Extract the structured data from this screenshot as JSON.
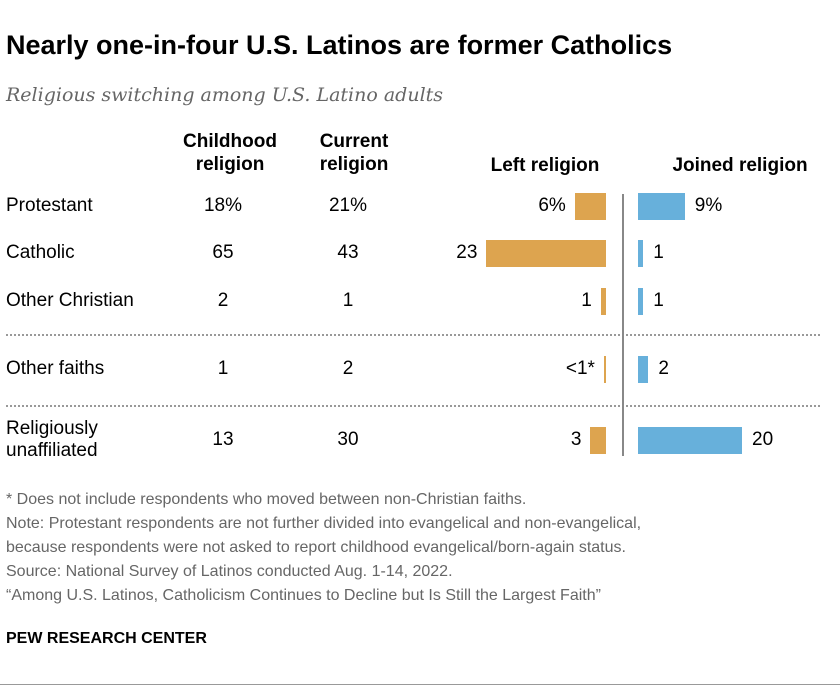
{
  "title": "Nearly one-in-four U.S. Latinos are former Catholics",
  "subtitle": "Religious switching among U.S. Latino adults",
  "headers": {
    "childhood": [
      "Childhood",
      "religion"
    ],
    "current": [
      "Current",
      "religion"
    ],
    "left": "Left religion",
    "joined": "Joined religion"
  },
  "colors": {
    "left": "#DDA44F",
    "joined": "#67B0DB"
  },
  "chart_data": {
    "type": "table",
    "categories": [
      "Protestant",
      "Catholic",
      "Other Christian",
      "Other faiths",
      "Religiously unaffiliated"
    ],
    "label_lines": [
      [
        "Protestant"
      ],
      [
        "Catholic"
      ],
      [
        "Other Christian"
      ],
      [
        "Other faiths"
      ],
      [
        "Religiously",
        "unaffiliated"
      ]
    ],
    "childhood": [
      "18%",
      "65",
      "2",
      "1",
      "13"
    ],
    "current": [
      "21%",
      "43",
      "1",
      "2",
      "30"
    ],
    "series": [
      {
        "name": "Left religion",
        "values": [
          6,
          23,
          1,
          0.4,
          3
        ],
        "labels": [
          "6%",
          "23",
          "1",
          "<1*",
          "3"
        ]
      },
      {
        "name": "Joined religion",
        "values": [
          9,
          1,
          1,
          2,
          20
        ],
        "labels": [
          "9%",
          "1",
          "1",
          "2",
          "20"
        ]
      }
    ]
  },
  "notes": [
    "* Does not include respondents who moved between non-Christian faiths.",
    "Note: Protestant respondents are not further divided into evangelical and non-evangelical,",
    "because respondents were not asked to report childhood evangelical/born-again status.",
    "Source: National Survey of Latinos conducted Aug. 1-14, 2022.",
    "“Among U.S. Latinos, Catholicism Continues to Decline but Is Still the Largest Faith”"
  ],
  "source_org": "PEW RESEARCH CENTER"
}
